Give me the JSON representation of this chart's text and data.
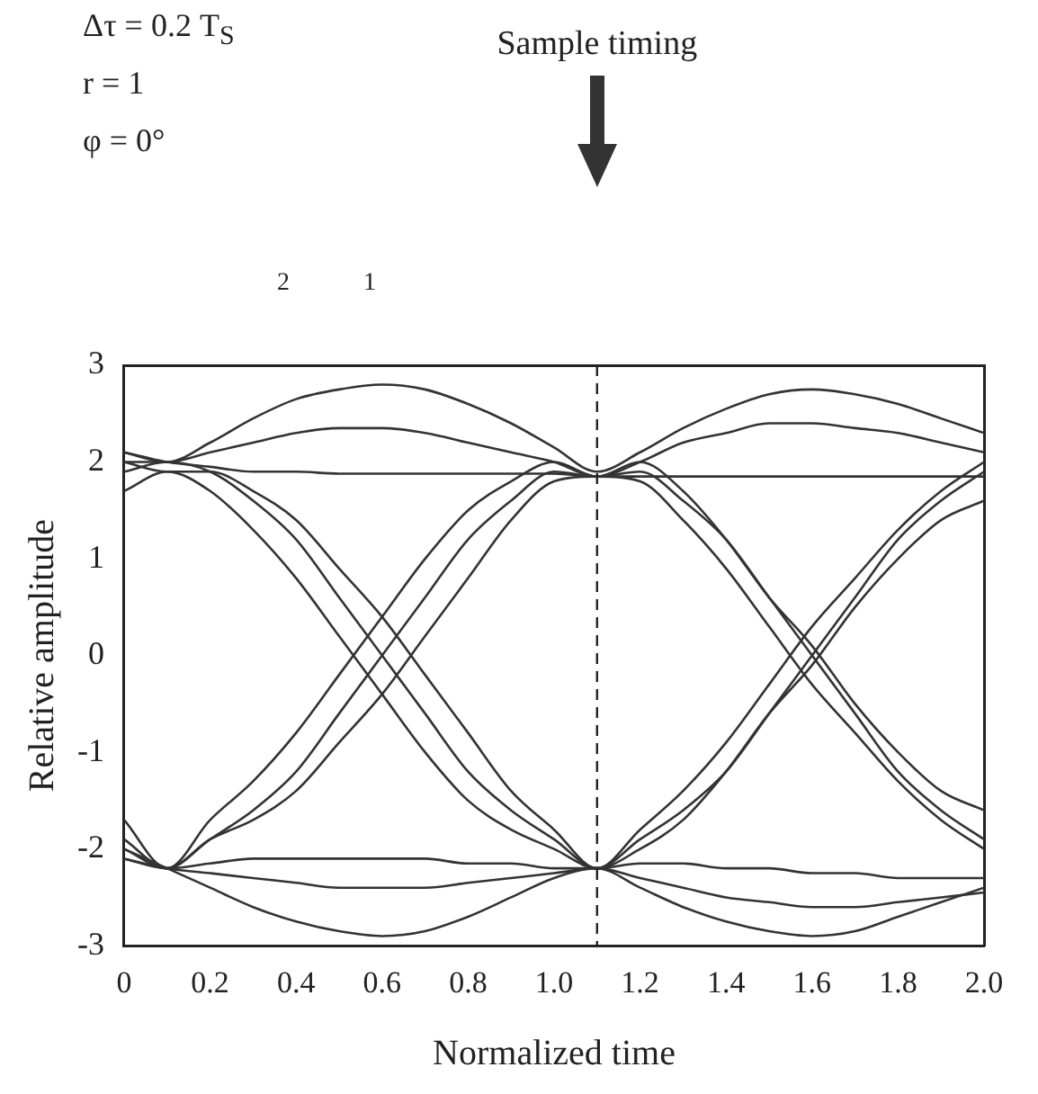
{
  "chart_data": {
    "type": "line",
    "xlabel": "Normalized time",
    "ylabel": "Relative amplitude",
    "annotations": [
      "Δτ = 0.2 T$_{S}$",
      "r = 1",
      "φ = 0°",
      "2",
      "1"
    ],
    "x": [
      0,
      0.1,
      0.2,
      0.3,
      0.4,
      0.5,
      0.6,
      0.7,
      0.8,
      0.9,
      1,
      1.1,
      1.2,
      1.3,
      1.4,
      1.5,
      1.6,
      1.7,
      1.8,
      1.9,
      2
    ],
    "series": [
      {
        "color": "#333333",
        "values": [
          2.0,
          2.0,
          2.2,
          2.45,
          2.65,
          2.75,
          2.8,
          2.75,
          2.6,
          2.4,
          2.15,
          1.9,
          2.1,
          2.35,
          2.55,
          2.7,
          2.75,
          2.7,
          2.6,
          2.45,
          2.3
        ]
      },
      {
        "color": "#333333",
        "values": [
          2.1,
          2.0,
          2.1,
          2.2,
          2.3,
          2.35,
          2.35,
          2.3,
          2.2,
          2.1,
          2.0,
          1.85,
          2.0,
          2.2,
          2.3,
          2.4,
          2.4,
          2.35,
          2.3,
          2.2,
          2.1
        ]
      },
      {
        "color": "#333333",
        "values": [
          2.1,
          2.0,
          1.95,
          1.9,
          1.9,
          1.88,
          1.88,
          1.88,
          1.88,
          1.88,
          1.88,
          1.85,
          1.85,
          1.85,
          1.85,
          1.85,
          1.85,
          1.85,
          1.85,
          1.85,
          1.85
        ]
      },
      {
        "color": "#333333",
        "values": [
          -2.0,
          -2.2,
          -2.4,
          -2.6,
          -2.75,
          -2.85,
          -2.9,
          -2.85,
          -2.7,
          -2.5,
          -2.3,
          -2.2,
          -2.4,
          -2.6,
          -2.75,
          -2.85,
          -2.9,
          -2.85,
          -2.7,
          -2.55,
          -2.4
        ]
      },
      {
        "color": "#333333",
        "values": [
          -2.1,
          -2.2,
          -2.25,
          -2.3,
          -2.35,
          -2.4,
          -2.4,
          -2.4,
          -2.35,
          -2.3,
          -2.25,
          -2.2,
          -2.3,
          -2.4,
          -2.5,
          -2.55,
          -2.6,
          -2.6,
          -2.55,
          -2.5,
          -2.45
        ]
      },
      {
        "color": "#333333",
        "values": [
          -2.1,
          -2.2,
          -2.15,
          -2.1,
          -2.1,
          -2.1,
          -2.1,
          -2.1,
          -2.15,
          -2.15,
          -2.2,
          -2.2,
          -2.15,
          -2.15,
          -2.2,
          -2.2,
          -2.25,
          -2.25,
          -2.3,
          -2.3,
          -2.3
        ]
      },
      {
        "color": "#333333",
        "values": [
          1.9,
          2.0,
          1.9,
          1.6,
          1.2,
          0.6,
          0,
          -0.6,
          -1.2,
          -1.6,
          -1.9,
          -2.2,
          -1.9,
          -1.6,
          -1.2,
          -0.6,
          0,
          0.6,
          1.2,
          1.6,
          1.9
        ]
      },
      {
        "color": "#333333",
        "values": [
          1.7,
          1.9,
          1.7,
          1.3,
          0.8,
          0.2,
          -0.4,
          -1.0,
          -1.5,
          -1.8,
          -2.0,
          -2.2,
          -2.0,
          -1.7,
          -1.2,
          -0.6,
          -0.1,
          0.5,
          1.0,
          1.4,
          1.6
        ]
      },
      {
        "color": "#333333",
        "values": [
          2.0,
          1.9,
          1.9,
          1.7,
          1.4,
          0.9,
          0.4,
          -0.2,
          -0.8,
          -1.4,
          -1.8,
          -2.2,
          -1.8,
          -1.4,
          -0.9,
          -0.3,
          0.3,
          0.8,
          1.3,
          1.7,
          2.0
        ]
      },
      {
        "color": "#333333",
        "values": [
          -1.9,
          -2.2,
          -1.9,
          -1.6,
          -1.2,
          -0.6,
          0,
          0.6,
          1.2,
          1.6,
          1.9,
          1.85,
          1.9,
          1.6,
          1.2,
          0.6,
          0,
          -0.6,
          -1.2,
          -1.6,
          -1.9
        ]
      },
      {
        "color": "#333333",
        "values": [
          -1.7,
          -2.2,
          -1.7,
          -1.3,
          -0.8,
          -0.2,
          0.4,
          1.0,
          1.5,
          1.8,
          2.0,
          1.85,
          2.0,
          1.7,
          1.2,
          0.6,
          0.1,
          -0.5,
          -1.0,
          -1.4,
          -1.6
        ]
      },
      {
        "color": "#333333",
        "values": [
          -2.0,
          -2.2,
          -1.9,
          -1.7,
          -1.4,
          -0.9,
          -0.4,
          0.2,
          0.8,
          1.4,
          1.8,
          1.85,
          1.8,
          1.4,
          0.9,
          0.3,
          -0.3,
          -0.8,
          -1.3,
          -1.7,
          -2.0
        ]
      }
    ],
    "xlim": [
      0,
      2
    ],
    "xticks": [
      0,
      0.2,
      0.4,
      0.6,
      0.8,
      {
        "value": 1,
        "label": "1.0"
      },
      1.2,
      1.4,
      1.6,
      1.8,
      {
        "value": 2,
        "label": "2.0"
      }
    ],
    "ylim": [
      -3,
      3
    ],
    "yticks": [
      -3,
      -2,
      -1,
      0,
      1,
      2,
      3
    ],
    "ref_lines": [
      {
        "axis": "x",
        "value": 1.1,
        "label": "Sample timing",
        "line_style": "dashed"
      }
    ],
    "grid": false,
    "legend": false,
    "marker": "none",
    "line_style": "solid"
  }
}
